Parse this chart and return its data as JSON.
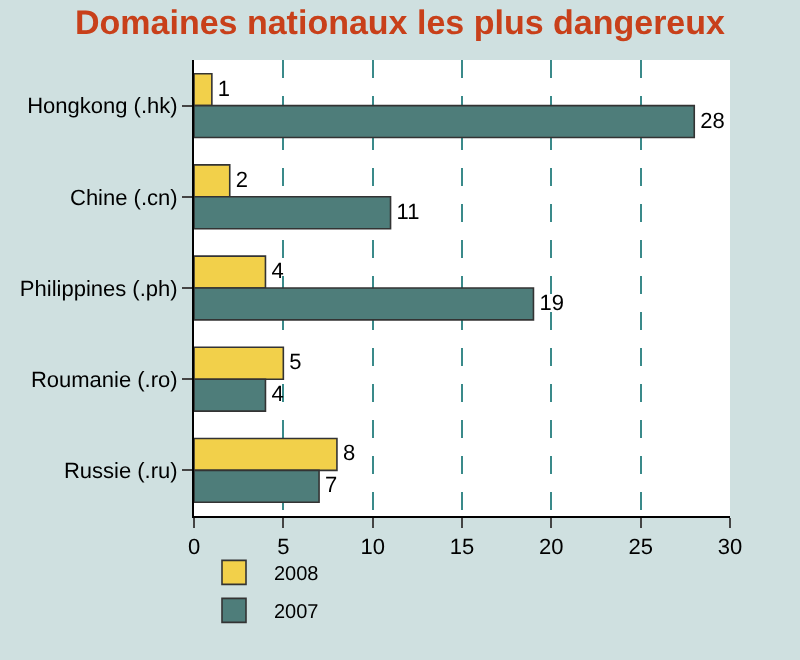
{
  "chart_data": {
    "type": "bar",
    "orientation": "horizontal",
    "title": "Domaines nationaux les plus dangereux",
    "categories": [
      "Hongkong (.hk)",
      "Chine (.cn)",
      "Philippines (.ph)",
      "Roumanie (.ro)",
      "Russie (.ru)"
    ],
    "series": [
      {
        "name": "2008",
        "color": "#f2d04a",
        "values": [
          1,
          2,
          4,
          5,
          8
        ]
      },
      {
        "name": "2007",
        "color": "#4e7d7a",
        "values": [
          28,
          11,
          19,
          4,
          7
        ]
      }
    ],
    "xlim": [
      0,
      30
    ],
    "xticks": [
      0,
      5,
      10,
      15,
      20,
      25,
      30
    ],
    "grid": "x",
    "legend": "bottom left",
    "data_labels": true
  }
}
